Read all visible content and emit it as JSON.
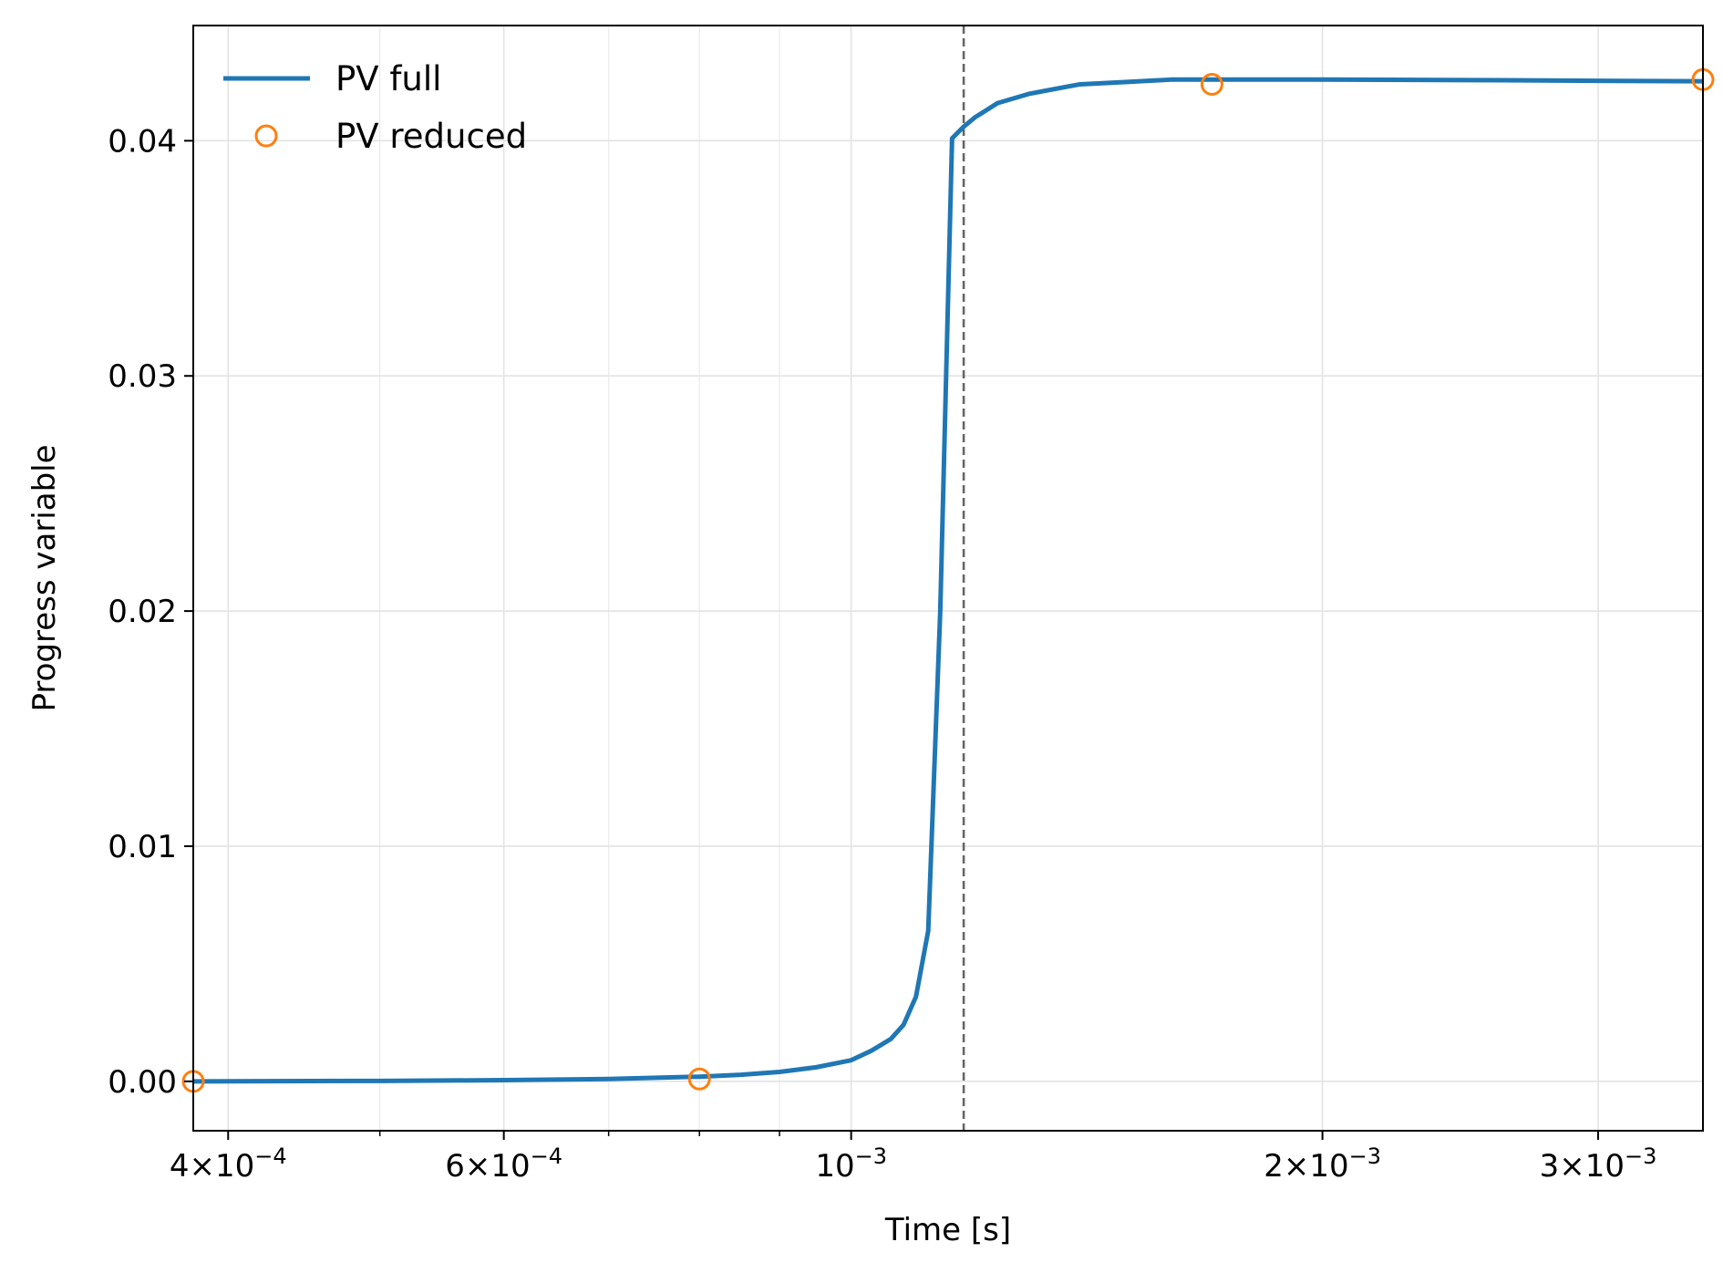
{
  "chart_data": {
    "type": "line",
    "title": "",
    "xlabel": "Time [s]",
    "ylabel": "Progress variable",
    "x_scale": "log",
    "xlim": [
      0.00038,
      0.0035
    ],
    "ylim": [
      -0.0021,
      0.0449
    ],
    "grid": true,
    "legend_placement": "top-left",
    "x_ticks": [
      {
        "value": 0.0004,
        "mantissa": "4",
        "exponent": "−4"
      },
      {
        "value": 0.0006,
        "mantissa": "6",
        "exponent": "−4"
      },
      {
        "value": 0.001,
        "mantissa": "",
        "exponent": "−3"
      },
      {
        "value": 0.002,
        "mantissa": "2",
        "exponent": "−3"
      },
      {
        "value": 0.003,
        "mantissa": "3",
        "exponent": "−3"
      }
    ],
    "x_minor_ticks": [
      0.0005,
      0.0007,
      0.0008,
      0.0009
    ],
    "y_ticks": [
      {
        "value": 0.0,
        "label": "0.00"
      },
      {
        "value": 0.01,
        "label": "0.01"
      },
      {
        "value": 0.02,
        "label": "0.02"
      },
      {
        "value": 0.03,
        "label": "0.03"
      },
      {
        "value": 0.04,
        "label": "0.04"
      }
    ],
    "vline": {
      "x": 0.00118,
      "color": "#666666",
      "style": "dashed"
    },
    "series": [
      {
        "name": "PV full",
        "kind": "line",
        "color": "#1f77b4",
        "x": [
          0.00038,
          0.0005,
          0.0006,
          0.0007,
          0.0008,
          0.00085,
          0.0009,
          0.00095,
          0.001,
          0.00103,
          0.00106,
          0.00108,
          0.0011,
          0.00112,
          0.00114,
          0.00116,
          0.00118,
          0.0012,
          0.00122,
          0.00124,
          0.0013,
          0.0014,
          0.0015,
          0.0016,
          0.0017,
          0.0018,
          0.0019,
          0.002,
          0.0025,
          0.003,
          0.0035
        ],
        "y": [
          0.0,
          2e-05,
          5e-05,
          0.0001,
          0.0002,
          0.00028,
          0.0004,
          0.0006,
          0.0009,
          0.0013,
          0.0018,
          0.0024,
          0.0036,
          0.0064,
          0.02,
          0.0401,
          0.0406,
          0.041,
          0.0413,
          0.0416,
          0.042,
          0.0424,
          0.0425,
          0.0426,
          0.0426,
          0.0426,
          0.0426,
          0.0426,
          0.04258,
          0.04255,
          0.04253
        ]
      },
      {
        "name": "PV reduced",
        "kind": "scatter",
        "marker": "open-circle",
        "color": "#ff7f0e",
        "x": [
          0.00038,
          0.0008,
          0.0017,
          0.0035
        ],
        "y": [
          0.0,
          0.0001,
          0.0424,
          0.0426
        ]
      }
    ]
  }
}
